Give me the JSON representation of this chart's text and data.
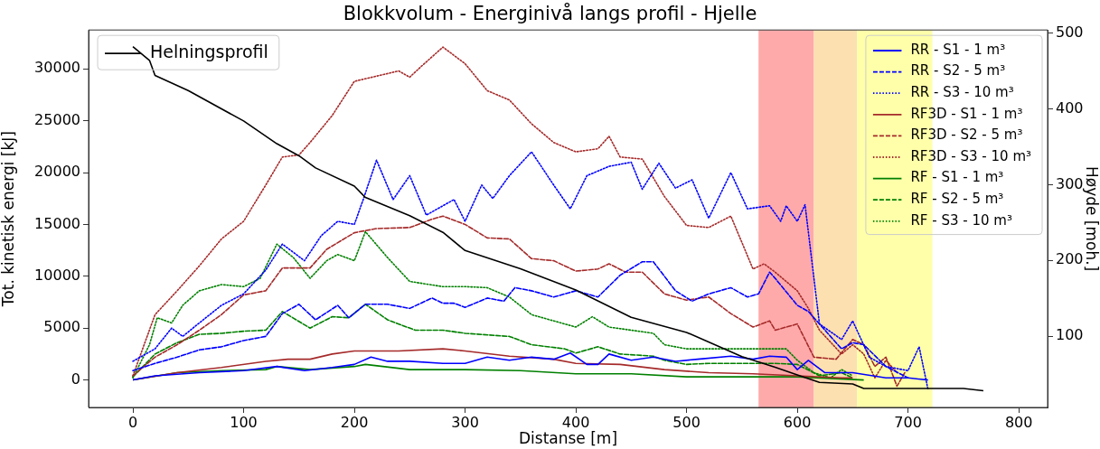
{
  "chart_data": {
    "type": "line",
    "title": "Blokkvolum - Energinivå langs profil - Hjelle",
    "xlabel": "Distanse [m]",
    "ylabel": "Tot. kinetisk energi [kJ]",
    "y2label": "Høyde [moh.]",
    "xlim": [
      -40,
      826
    ],
    "xticks": [
      0,
      100,
      200,
      300,
      400,
      500,
      600,
      700,
      800
    ],
    "ylim": [
      -2650,
      33750
    ],
    "yticks": [
      0,
      5000,
      10000,
      15000,
      20000,
      25000,
      30000
    ],
    "y2lim": [
      6,
      504
    ],
    "y2ticks": [
      100,
      200,
      300,
      400,
      500
    ],
    "legend": "top right",
    "grid": false,
    "bands": [
      {
        "axis": "x",
        "from": 565,
        "to": 615,
        "color": "#ffaaaa"
      },
      {
        "axis": "x",
        "from": 615,
        "to": 654,
        "color": "#fde0b0"
      },
      {
        "axis": "x",
        "from": 654,
        "to": 722,
        "color": "#ffffaa"
      }
    ],
    "series": [
      {
        "name": "Helningsprofil",
        "color": "#000000",
        "line_style": "solid",
        "axis": "y2",
        "x": [
          0,
          15,
          20,
          50,
          100,
          130,
          150,
          165,
          200,
          210,
          250,
          280,
          300,
          350,
          400,
          450,
          500,
          550,
          580,
          600,
          620,
          650,
          660,
          700,
          750,
          768
        ],
        "values": [
          482,
          464,
          444,
          424,
          384,
          354,
          338,
          322,
          298,
          283,
          259,
          237,
          213,
          189,
          161,
          125,
          105,
          73,
          59,
          49,
          39,
          37,
          31,
          31,
          31,
          28
        ]
      },
      {
        "name": "RR - S1 - 1 m³",
        "color": "#0000ff",
        "line_style": "solid",
        "x": [
          0,
          20,
          60,
          100,
          130,
          155,
          180,
          200,
          215,
          230,
          250,
          280,
          300,
          320,
          340,
          360,
          380,
          395,
          410,
          420,
          430,
          450,
          470,
          490,
          510,
          540,
          560,
          575,
          590,
          600,
          610,
          625,
          650,
          680,
          700,
          718
        ],
        "values": [
          0,
          400,
          700,
          900,
          1300,
          900,
          1200,
          1500,
          2200,
          1800,
          1800,
          1600,
          1600,
          2200,
          1900,
          2200,
          2000,
          2600,
          1500,
          1500,
          2500,
          1900,
          2200,
          1800,
          2000,
          2300,
          2000,
          2300,
          2200,
          1000,
          1900,
          700,
          700,
          200,
          200,
          0
        ]
      },
      {
        "name": "RR - S2 - 5 m³",
        "color": "#0000ff",
        "line_style": "dashed",
        "x": [
          0,
          20,
          40,
          60,
          80,
          100,
          120,
          135,
          150,
          165,
          185,
          195,
          210,
          230,
          250,
          270,
          280,
          290,
          300,
          320,
          335,
          345,
          360,
          380,
          400,
          420,
          440,
          460,
          470,
          490,
          505,
          520,
          540,
          555,
          565,
          575,
          580,
          600,
          610,
          630,
          640,
          650,
          660,
          680,
          700
        ],
        "values": [
          900,
          1600,
          2200,
          2900,
          3200,
          3800,
          4200,
          6400,
          7300,
          5800,
          7200,
          6000,
          7300,
          7300,
          6900,
          7900,
          7400,
          7400,
          7000,
          7900,
          7600,
          8900,
          8600,
          8000,
          8600,
          8000,
          10100,
          11400,
          11400,
          8600,
          7600,
          8300,
          8900,
          8000,
          8300,
          10400,
          9800,
          7200,
          6600,
          4200,
          3000,
          3600,
          3400,
          1300,
          200
        ]
      },
      {
        "name": "RR - S3 - 10 m³",
        "color": "#0000ff",
        "line_style": "dotted",
        "x": [
          0,
          20,
          35,
          45,
          60,
          80,
          100,
          120,
          135,
          155,
          170,
          185,
          200,
          208,
          220,
          235,
          250,
          265,
          280,
          290,
          300,
          315,
          325,
          340,
          360,
          380,
          395,
          410,
          430,
          450,
          460,
          475,
          490,
          505,
          520,
          540,
          555,
          575,
          585,
          590,
          600,
          607,
          620,
          640,
          650,
          665,
          680,
          700,
          710,
          718
        ],
        "values": [
          1800,
          3000,
          5000,
          4200,
          5500,
          7200,
          8300,
          10600,
          13100,
          11500,
          13900,
          15300,
          15000,
          17400,
          21200,
          17400,
          19700,
          15900,
          16800,
          17400,
          15300,
          18800,
          17500,
          19700,
          22000,
          18800,
          16500,
          19700,
          20600,
          21000,
          18400,
          20900,
          18500,
          19300,
          15600,
          20000,
          16500,
          16800,
          15300,
          16800,
          15300,
          16900,
          5400,
          3900,
          5700,
          2200,
          1300,
          900,
          3200,
          -900
        ]
      },
      {
        "name": "RF3D - S1 - 1 m³",
        "color": "#a52a2a",
        "line_style": "solid",
        "x": [
          0,
          40,
          80,
          120,
          140,
          160,
          180,
          200,
          240,
          280,
          300,
          340,
          380,
          400,
          440,
          480,
          520,
          560,
          600,
          640,
          650
        ],
        "values": [
          0,
          700,
          1200,
          1800,
          2000,
          2000,
          2500,
          2800,
          2800,
          3000,
          2800,
          2300,
          2000,
          1600,
          1500,
          1000,
          700,
          600,
          400,
          200,
          200
        ]
      },
      {
        "name": "RF3D - S2 - 5 m³",
        "color": "#a52a2a",
        "line_style": "dashed",
        "x": [
          0,
          20,
          40,
          60,
          80,
          100,
          120,
          135,
          160,
          175,
          200,
          220,
          250,
          270,
          280,
          300,
          320,
          340,
          360,
          380,
          400,
          420,
          430,
          445,
          460,
          480,
          500,
          520,
          540,
          560,
          575,
          580,
          600,
          615,
          635,
          650,
          660,
          670,
          680,
          690,
          697
        ],
        "values": [
          400,
          2200,
          3400,
          4800,
          6300,
          8200,
          8600,
          10800,
          10800,
          12600,
          14200,
          14600,
          14700,
          15500,
          15800,
          15000,
          13700,
          13600,
          11700,
          11500,
          10500,
          10700,
          11200,
          10400,
          10400,
          8300,
          7700,
          8000,
          6400,
          5100,
          5700,
          4800,
          5400,
          2200,
          2000,
          3900,
          3400,
          1300,
          2200,
          -600,
          700
        ]
      },
      {
        "name": "RF3D - S3 - 10 m³",
        "color": "#a52a2a",
        "line_style": "dotted",
        "x": [
          0,
          20,
          40,
          60,
          80,
          100,
          120,
          135,
          150,
          160,
          180,
          200,
          220,
          240,
          250,
          260,
          280,
          300,
          320,
          340,
          360,
          380,
          400,
          420,
          430,
          440,
          460,
          480,
          500,
          520,
          540,
          560,
          570,
          580,
          600,
          610,
          620,
          640,
          650,
          660,
          670,
          680,
          690
        ],
        "values": [
          400,
          6300,
          8600,
          11000,
          13600,
          15300,
          18800,
          21500,
          21700,
          22900,
          25500,
          28800,
          29300,
          29800,
          29200,
          30200,
          32100,
          30500,
          27900,
          27000,
          24700,
          22900,
          22000,
          22300,
          23500,
          21500,
          21300,
          17700,
          14900,
          14700,
          15800,
          10700,
          11200,
          10400,
          8600,
          6900,
          4800,
          2500,
          3400,
          2500,
          200,
          1900,
          700
        ]
      },
      {
        "name": "RF - S1 - 1 m³",
        "color": "#008000",
        "line_style": "solid",
        "x": [
          0,
          40,
          80,
          120,
          130,
          160,
          200,
          210,
          250,
          300,
          350,
          400,
          450,
          500,
          560,
          600,
          660
        ],
        "values": [
          0,
          700,
          900,
          1000,
          1300,
          1000,
          1300,
          1500,
          1000,
          1000,
          900,
          600,
          600,
          300,
          300,
          300,
          0
        ]
      },
      {
        "name": "RF - S2 - 5 m³",
        "color": "#008000",
        "line_style": "dashed",
        "x": [
          0,
          20,
          40,
          60,
          80,
          100,
          120,
          135,
          160,
          180,
          195,
          210,
          230,
          255,
          280,
          300,
          340,
          360,
          390,
          400,
          420,
          440,
          470,
          480,
          500,
          520,
          580,
          600,
          620,
          640,
          650
        ],
        "values": [
          300,
          2500,
          3600,
          4400,
          4500,
          4700,
          4800,
          6600,
          5000,
          6100,
          6000,
          7300,
          5800,
          4800,
          4800,
          4500,
          4200,
          3400,
          3000,
          2600,
          3200,
          2500,
          2300,
          1900,
          1500,
          1600,
          1600,
          1500,
          400,
          700,
          200
        ]
      },
      {
        "name": "RF - S3 - 10 m³",
        "color": "#008000",
        "line_style": "dotted",
        "x": [
          0,
          15,
          22,
          35,
          45,
          60,
          80,
          100,
          115,
          130,
          145,
          160,
          175,
          185,
          200,
          210,
          230,
          250,
          280,
          300,
          320,
          340,
          360,
          380,
          400,
          415,
          430,
          450,
          470,
          480,
          500,
          550,
          580,
          590,
          600,
          615,
          630,
          640,
          650
        ],
        "values": [
          200,
          3400,
          6000,
          5500,
          7200,
          8600,
          9200,
          9000,
          9800,
          13100,
          11800,
          9800,
          11500,
          12100,
          11500,
          14300,
          11800,
          9500,
          9000,
          9000,
          8900,
          8000,
          6300,
          5700,
          5100,
          6100,
          5100,
          4800,
          4500,
          3400,
          3000,
          3000,
          3000,
          3000,
          1900,
          700,
          200,
          1000,
          400
        ]
      }
    ]
  }
}
